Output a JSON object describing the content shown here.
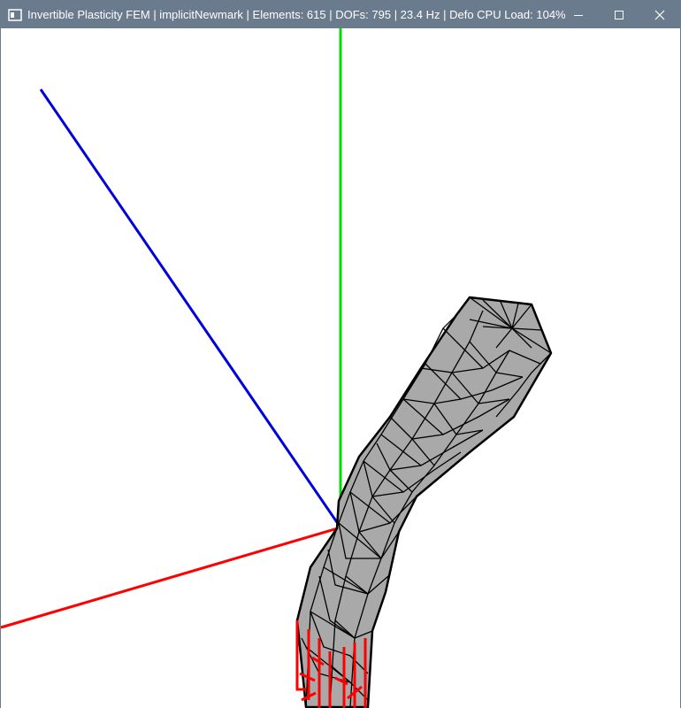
{
  "window": {
    "title": "Invertible Plasticity FEM | implicitNewmark | Elements: 615 | DOFs: 795 | 23.4 Hz | Defo CPU Load: 104%",
    "controls": {
      "minimize_icon": "minimize-icon",
      "maximize_icon": "maximize-icon",
      "close_icon": "close-icon"
    }
  },
  "colors": {
    "titlebar": "#6a7b8d",
    "axis_x": "#ff0000",
    "axis_y": "#00dd00",
    "axis_z": "#0000dd",
    "mesh_fill": "#a9a9a9",
    "mesh_edges": "#000000",
    "constraint_vertices": "#ff0000"
  },
  "scene": {
    "axes": [
      "x-axis",
      "y-axis",
      "z-axis"
    ],
    "object": "deformed-beam-mesh",
    "fixed_region": "constraint-markers"
  }
}
